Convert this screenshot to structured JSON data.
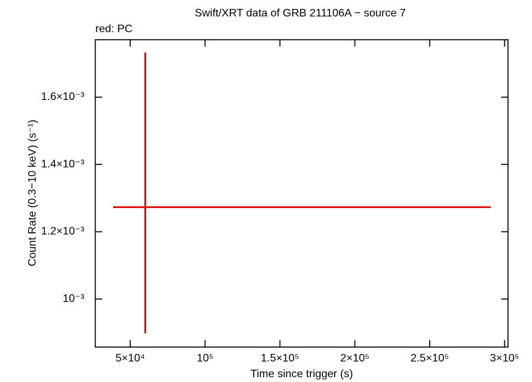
{
  "chart_data": {
    "type": "scatter",
    "title": "Swift/XRT data of GRB 211106A − source 7",
    "subtitle": "red: PC",
    "x_label": "Time since trigger (s)",
    "y_label": "Count Rate (0.3−10 keV) (s⁻¹)",
    "xlim": [
      26670,
      302300
    ],
    "ylim": [
      0.000857,
      0.001771
    ],
    "xticks": [
      {
        "value": 50000,
        "label": "5×10⁴"
      },
      {
        "value": 100000,
        "label": "10⁵"
      },
      {
        "value": 150000,
        "label": "1.5×10⁵"
      },
      {
        "value": 200000,
        "label": "2×10⁵"
      },
      {
        "value": 250000,
        "label": "2.5×10⁵"
      },
      {
        "value": 300000,
        "label": "3×10⁵"
      }
    ],
    "yticks": [
      {
        "value": 0.001,
        "label": "10⁻³"
      },
      {
        "value": 0.0012,
        "label": "1.2×10⁻³"
      },
      {
        "value": 0.0014,
        "label": "1.4×10⁻³"
      },
      {
        "value": 0.0016,
        "label": "1.6×10⁻³"
      }
    ],
    "series": [
      {
        "color": "#e00000",
        "x": [
          60000
        ],
        "xerr_minus": [
          21400
        ],
        "xerr_plus": [
          230800
        ],
        "values": [
          0.001273
        ],
        "yerr_plus": [
          0.00046
        ],
        "yerr_minus": [
          0.000375
        ]
      }
    ]
  }
}
